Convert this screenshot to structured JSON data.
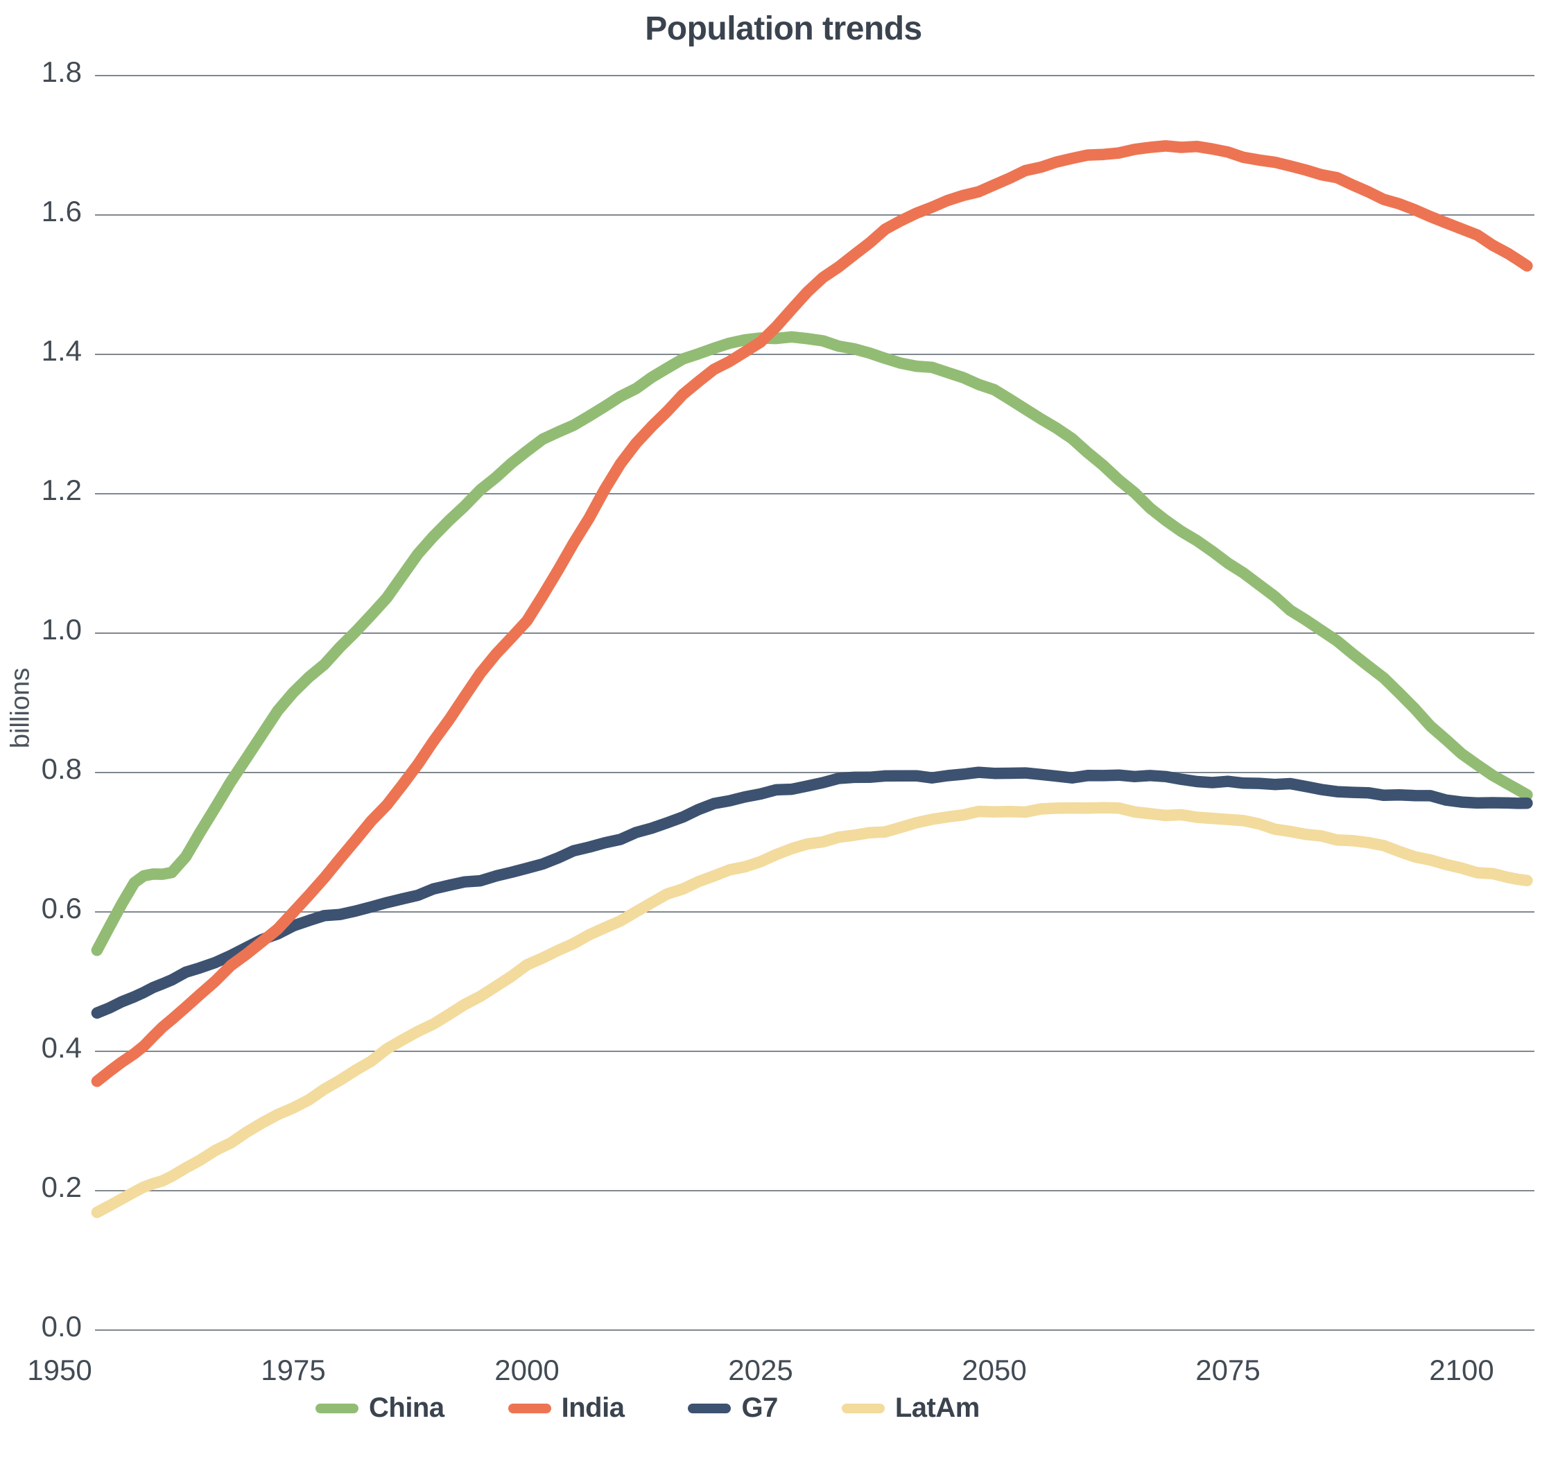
{
  "chart_data": {
    "type": "line",
    "title": "Population trends",
    "ylabel": "billions",
    "xlabel": "",
    "y_ticks": [
      "0.0",
      "0.2",
      "0.4",
      "0.6",
      "0.8",
      "1.0",
      "1.2",
      "1.4",
      "1.6",
      "1.8"
    ],
    "x_ticks": [
      1950,
      1975,
      2000,
      2025,
      2050,
      2075,
      2100
    ],
    "ylim": [
      0.0,
      1.8
    ],
    "grid": "horizontal-only",
    "legend_position": "bottom",
    "line_style": "thick-hand-drawn",
    "x_years": [
      1954,
      1958,
      1960,
      1962,
      1965,
      1970,
      1975,
      1980,
      1985,
      1990,
      1995,
      2000,
      2005,
      2010,
      2015,
      2020,
      2025,
      2030,
      2035,
      2040,
      2045,
      2050,
      2055,
      2060,
      2065,
      2070,
      2075,
      2080,
      2085,
      2090,
      2095,
      2100,
      2105,
      2107
    ],
    "series": [
      {
        "name": "China",
        "color": "#92bc74",
        "values": [
          0.545,
          0.64,
          0.654,
          0.658,
          0.715,
          0.82,
          0.915,
          0.98,
          1.05,
          1.14,
          1.205,
          1.26,
          1.3,
          1.34,
          1.378,
          1.41,
          1.425,
          1.42,
          1.408,
          1.39,
          1.372,
          1.348,
          1.31,
          1.258,
          1.2,
          1.148,
          1.1,
          1.052,
          1.005,
          0.952,
          0.892,
          0.828,
          0.782,
          0.768
        ]
      },
      {
        "name": "India",
        "color": "#ed7452",
        "values": [
          0.357,
          0.4,
          0.423,
          0.445,
          0.48,
          0.54,
          0.6,
          0.675,
          0.755,
          0.845,
          0.94,
          1.02,
          1.13,
          1.24,
          1.32,
          1.38,
          1.415,
          1.49,
          1.545,
          1.59,
          1.62,
          1.645,
          1.668,
          1.685,
          1.695,
          1.697,
          1.69,
          1.676,
          1.657,
          1.634,
          1.608,
          1.578,
          1.545,
          1.527
        ]
      },
      {
        "name": "G7",
        "color": "#3c5270",
        "values": [
          0.455,
          0.478,
          0.49,
          0.501,
          0.52,
          0.55,
          0.578,
          0.598,
          0.614,
          0.63,
          0.647,
          0.664,
          0.684,
          0.706,
          0.73,
          0.752,
          0.77,
          0.783,
          0.791,
          0.795,
          0.797,
          0.798,
          0.797,
          0.796,
          0.794,
          0.791,
          0.787,
          0.782,
          0.777,
          0.771,
          0.765,
          0.759,
          0.757,
          0.756
        ]
      },
      {
        "name": "LatAm",
        "color": "#f2db9d",
        "values": [
          0.169,
          0.196,
          0.21,
          0.224,
          0.245,
          0.282,
          0.32,
          0.36,
          0.4,
          0.441,
          0.481,
          0.52,
          0.556,
          0.59,
          0.622,
          0.652,
          0.675,
          0.695,
          0.71,
          0.723,
          0.735,
          0.744,
          0.748,
          0.748,
          0.745,
          0.739,
          0.731,
          0.721,
          0.709,
          0.697,
          0.681,
          0.664,
          0.648,
          0.645
        ]
      }
    ],
    "legend": [
      {
        "label": "China",
        "color": "#92bc74"
      },
      {
        "label": "India",
        "color": "#ed7452"
      },
      {
        "label": "G7",
        "color": "#3c5270"
      },
      {
        "label": "LatAm",
        "color": "#f2db9d"
      }
    ]
  },
  "colors": {
    "background": "#ffffff",
    "title_text": "#3a434e",
    "tick_text": "#424b54",
    "axis_label_text": "#4a535c",
    "gridline": "#6b737b"
  }
}
